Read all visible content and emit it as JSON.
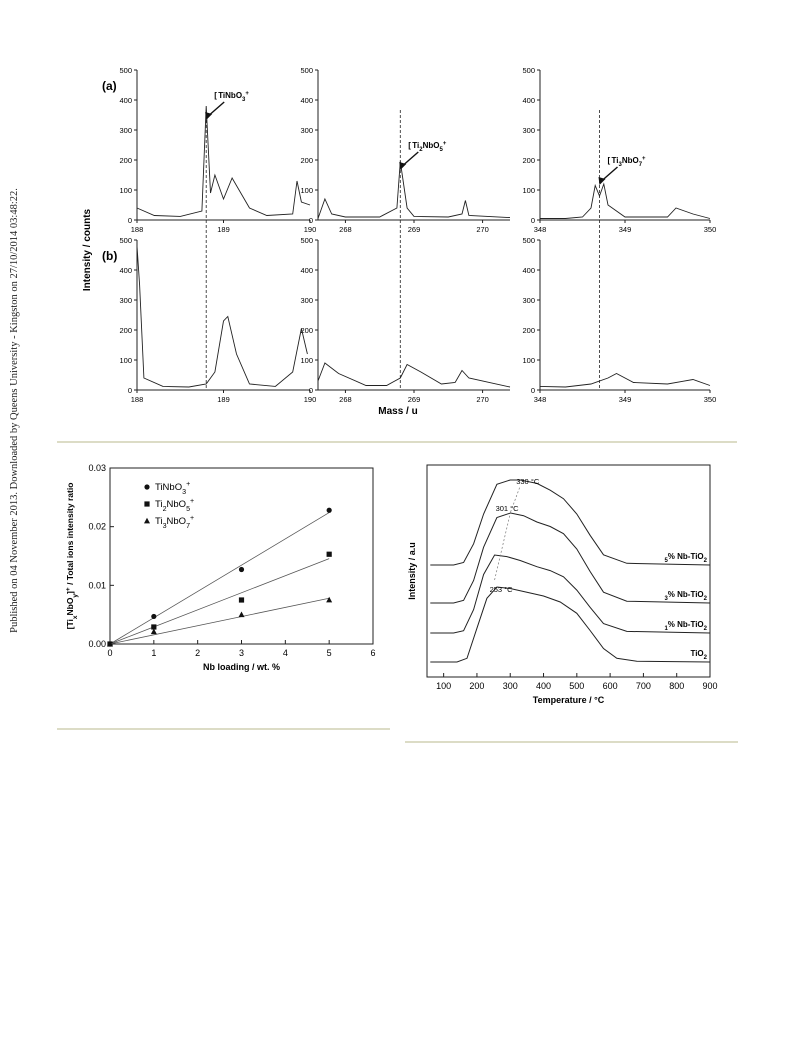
{
  "side_note": "Published on 04 November 2013. Downloaded by Queens University - Kingston on 27/10/2014 03:48:22.",
  "fig1": {
    "panel_labels": [
      "(a)",
      "(b)"
    ],
    "ylabel": "Intensity / counts",
    "xlabel": "Mass / u",
    "y_ticks": [
      "500",
      "400",
      "300",
      "200",
      "100",
      "0"
    ],
    "panels": [
      {
        "x_ticks": [
          "188",
          "189",
          "190"
        ],
        "peak_label": "[TiNbO3]+"
      },
      {
        "x_ticks": [
          "268",
          "269",
          "270"
        ],
        "peak_label": "[Ti2NbO5]+"
      },
      {
        "x_ticks": [
          "348",
          "349",
          "350"
        ],
        "peak_label": "[Ti3NbO7]+"
      }
    ]
  },
  "chart_data": [
    {
      "type": "line",
      "title": "",
      "ylabel": "Intensity / counts",
      "xlabel": "Mass / u",
      "ylim": [
        0,
        500
      ],
      "note": "Mass spectra; row (a) and row (b), three mass windows each",
      "series": [
        {
          "name": "(a) 188-190",
          "x": [
            188.0,
            188.2,
            188.5,
            188.75,
            188.8,
            188.85,
            188.9,
            189.0,
            189.1,
            189.3,
            189.5,
            189.8,
            189.85,
            189.9,
            190.0
          ],
          "y": [
            40,
            15,
            12,
            30,
            380,
            90,
            150,
            70,
            140,
            40,
            15,
            20,
            130,
            60,
            50
          ]
        },
        {
          "name": "(a) 268-270",
          "x": [
            267.6,
            267.7,
            267.8,
            268.0,
            268.5,
            268.75,
            268.8,
            268.9,
            269.0,
            269.5,
            269.7,
            269.75,
            269.8,
            270.4
          ],
          "y": [
            5,
            70,
            20,
            10,
            10,
            40,
            195,
            40,
            12,
            10,
            20,
            65,
            15,
            8
          ]
        },
        {
          "name": "(a) 348-350",
          "x": [
            348.0,
            348.3,
            348.5,
            348.6,
            348.65,
            348.7,
            348.75,
            348.8,
            349.0,
            349.5,
            349.6,
            349.8,
            350.0
          ],
          "y": [
            5,
            5,
            10,
            40,
            115,
            80,
            120,
            50,
            10,
            10,
            40,
            20,
            5
          ]
        }
      ]
    },
    {
      "type": "line",
      "title": "",
      "ylabel": "Intensity / counts",
      "xlabel": "Mass / u",
      "ylim": [
        0,
        500
      ],
      "series": [
        {
          "name": "(b) 188-190",
          "x": [
            188.0,
            188.03,
            188.08,
            188.3,
            188.6,
            188.8,
            188.9,
            189.0,
            189.05,
            189.15,
            189.3,
            189.6,
            189.8,
            189.9,
            189.97
          ],
          "y": [
            480,
            350,
            40,
            12,
            10,
            20,
            60,
            230,
            245,
            120,
            20,
            12,
            60,
            205,
            120
          ]
        },
        {
          "name": "(b) 268-270",
          "x": [
            267.6,
            267.7,
            267.9,
            268.3,
            268.6,
            268.8,
            268.9,
            269.1,
            269.4,
            269.6,
            269.7,
            269.8,
            270.4
          ],
          "y": [
            30,
            90,
            55,
            15,
            15,
            40,
            85,
            60,
            20,
            25,
            65,
            40,
            10
          ]
        },
        {
          "name": "(b) 348-350",
          "x": [
            348.0,
            348.3,
            348.6,
            348.8,
            348.9,
            349.1,
            349.5,
            349.8,
            350.0
          ],
          "y": [
            12,
            10,
            20,
            40,
            55,
            25,
            20,
            35,
            15
          ]
        }
      ]
    },
    {
      "type": "scatter",
      "title": "",
      "xlabel": "Nb loading / wt. %",
      "ylabel": "[TixNbOy]+ / Total ions intensity ratio",
      "xlim": [
        0,
        6
      ],
      "ylim": [
        0,
        0.03
      ],
      "x_ticks": [
        "0",
        "1",
        "2",
        "3",
        "4",
        "5",
        "6"
      ],
      "y_ticks": [
        "0.00",
        "0.01",
        "0.02",
        "0.03"
      ],
      "legend_position": "top-left",
      "series": [
        {
          "name": "TiNbO3+",
          "marker": "circle",
          "x": [
            0,
            1,
            3,
            5
          ],
          "y": [
            0.0,
            0.0047,
            0.0127,
            0.0228
          ]
        },
        {
          "name": "Ti2NbO5+",
          "marker": "square",
          "x": [
            0,
            1,
            3,
            5
          ],
          "y": [
            0.0,
            0.0029,
            0.0075,
            0.0153
          ]
        },
        {
          "name": "Ti3NbO7+",
          "marker": "triangle",
          "x": [
            0,
            1,
            3,
            5
          ],
          "y": [
            0.0,
            0.0021,
            0.005,
            0.0075
          ]
        }
      ]
    },
    {
      "type": "line",
      "title": "",
      "xlabel": "Temperature / °C",
      "ylabel": "Intensity / a.u",
      "xlim": [
        50,
        900
      ],
      "x_ticks": [
        "100",
        "200",
        "300",
        "400",
        "500",
        "600",
        "700",
        "800",
        "900"
      ],
      "annotations": [
        "330 °C",
        "301 °C",
        "253 °C"
      ],
      "series": [
        {
          "name": "5% Nb-TiO2",
          "x": [
            60,
            130,
            160,
            190,
            220,
            260,
            300,
            330,
            380,
            420,
            460,
            500,
            540,
            580,
            650,
            900
          ],
          "y": [
            0.0,
            0.0,
            0.03,
            0.25,
            0.6,
            0.95,
            1.0,
            1.0,
            0.96,
            0.88,
            0.78,
            0.6,
            0.35,
            0.12,
            0.02,
            0.0
          ]
        },
        {
          "name": "3% Nb-TiO2",
          "x": [
            60,
            130,
            160,
            190,
            220,
            260,
            301,
            340,
            380,
            420,
            460,
            500,
            540,
            580,
            650,
            900
          ],
          "y": [
            0.0,
            0.0,
            0.03,
            0.25,
            0.62,
            0.95,
            1.0,
            0.97,
            0.9,
            0.85,
            0.77,
            0.6,
            0.35,
            0.12,
            0.02,
            0.0
          ]
        },
        {
          "name": "1% Nb-TiO2",
          "x": [
            60,
            130,
            160,
            190,
            220,
            253,
            290,
            330,
            380,
            420,
            460,
            500,
            540,
            580,
            650,
            900
          ],
          "y": [
            0.0,
            0.0,
            0.03,
            0.3,
            0.75,
            1.0,
            0.98,
            0.93,
            0.85,
            0.8,
            0.72,
            0.55,
            0.33,
            0.12,
            0.02,
            0.0
          ]
        },
        {
          "name": "TiO2",
          "x": [
            60,
            140,
            170,
            200,
            230,
            260,
            300,
            350,
            400,
            450,
            500,
            540,
            580,
            620,
            680,
            900
          ],
          "y": [
            0.0,
            0.0,
            0.05,
            0.45,
            0.85,
            1.0,
            0.98,
            0.93,
            0.88,
            0.8,
            0.65,
            0.42,
            0.18,
            0.05,
            0.01,
            0.0
          ]
        }
      ]
    }
  ]
}
